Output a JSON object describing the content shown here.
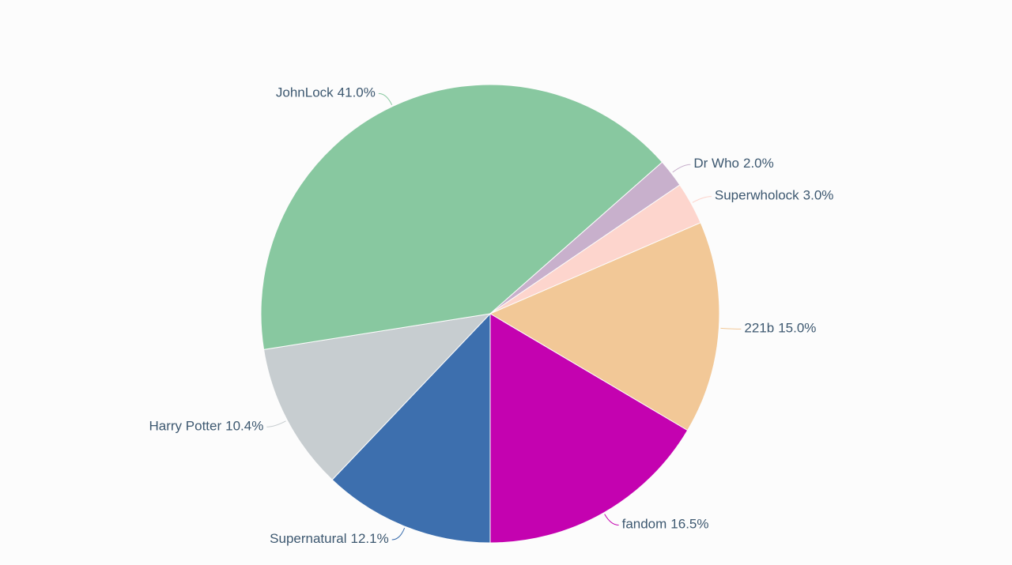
{
  "chart_data": {
    "type": "pie",
    "categories": [
      "Supernatural",
      "Harry Potter",
      "JohnLock",
      "Dr Who",
      "Superwholock",
      "221b",
      "fandom"
    ],
    "values": [
      12.1,
      10.4,
      41.0,
      2.0,
      3.0,
      15.0,
      16.5
    ],
    "value_labels": [
      "12.1%",
      "10.4%",
      "41.0%",
      "2.0%",
      "3.0%",
      "15.0%",
      "16.5%"
    ],
    "colors": [
      "#3d6fae",
      "#c7cdd0",
      "#88c8a0",
      "#c8b0cc",
      "#fdd5cd",
      "#f2c897",
      "#c402b0"
    ]
  }
}
